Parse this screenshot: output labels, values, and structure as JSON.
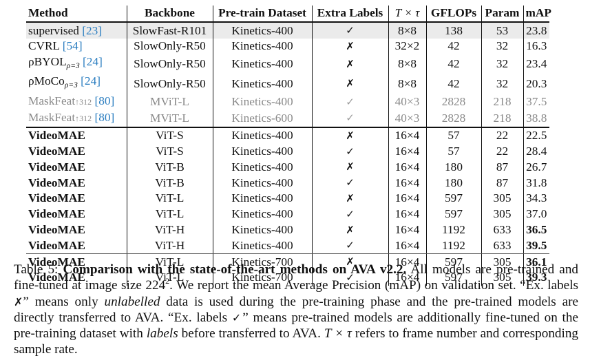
{
  "table": {
    "headers": {
      "method": "Method",
      "backbone": "Backbone",
      "dataset": "Pre-train Dataset",
      "extra_labels": "Extra Labels",
      "t_tau": "T × τ",
      "gflops": "GFLOPs",
      "param": "Param",
      "map": "mAP"
    },
    "rows": [
      {
        "method": "supervised",
        "method_sub": "",
        "cite": "[23]",
        "backbone": "SlowFast-R101",
        "dataset": "Kinetics-400",
        "extra": "✓",
        "t_tau": "8×8",
        "gflops": "138",
        "param": "53",
        "map": "23.8",
        "style": "shaded"
      },
      {
        "method": "CVRL",
        "method_sub": "",
        "cite": "[54]",
        "backbone": "SlowOnly-R50",
        "dataset": "Kinetics-400",
        "extra": "✗",
        "t_tau": "32×2",
        "gflops": "42",
        "param": "32",
        "map": "16.3",
        "style": "normal"
      },
      {
        "method": "ρBYOL",
        "method_sub": "ρ=3",
        "cite": "[24]",
        "backbone": "SlowOnly-R50",
        "dataset": "Kinetics-400",
        "extra": "✗",
        "t_tau": "8×8",
        "gflops": "42",
        "param": "32",
        "map": "23.4",
        "style": "normal"
      },
      {
        "method": "ρMoCo",
        "method_sub": "ρ=3",
        "cite": "[24]",
        "backbone": "SlowOnly-R50",
        "dataset": "Kinetics-400",
        "extra": "✗",
        "t_tau": "8×8",
        "gflops": "42",
        "param": "32",
        "map": "20.3",
        "style": "normal"
      },
      {
        "method": "MaskFeat",
        "method_sub": "↑312",
        "cite": "[80]",
        "backbone": "MViT-L",
        "dataset": "Kinetics-400",
        "extra": "✓",
        "t_tau": "40×3",
        "gflops": "2828",
        "param": "218",
        "map": "37.5",
        "style": "muted"
      },
      {
        "method": "MaskFeat",
        "method_sub": "↑312",
        "cite": "[80]",
        "backbone": "MViT-L",
        "dataset": "Kinetics-600",
        "extra": "✓",
        "t_tau": "40×3",
        "gflops": "2828",
        "param": "218",
        "map": "38.8",
        "style": "muted"
      },
      {
        "method": "VideoMAE",
        "backbone": "ViT-S",
        "dataset": "Kinetics-400",
        "extra": "✗",
        "t_tau": "16×4",
        "gflops": "57",
        "param": "22",
        "map": "22.5",
        "map_bold": false
      },
      {
        "method": "VideoMAE",
        "backbone": "ViT-S",
        "dataset": "Kinetics-400",
        "extra": "✓",
        "t_tau": "16×4",
        "gflops": "57",
        "param": "22",
        "map": "28.4",
        "map_bold": false
      },
      {
        "method": "VideoMAE",
        "backbone": "ViT-B",
        "dataset": "Kinetics-400",
        "extra": "✗",
        "t_tau": "16×4",
        "gflops": "180",
        "param": "87",
        "map": "26.7",
        "map_bold": false
      },
      {
        "method": "VideoMAE",
        "backbone": "ViT-B",
        "dataset": "Kinetics-400",
        "extra": "✓",
        "t_tau": "16×4",
        "gflops": "180",
        "param": "87",
        "map": "31.8",
        "map_bold": false
      },
      {
        "method": "VideoMAE",
        "backbone": "ViT-L",
        "dataset": "Kinetics-400",
        "extra": "✗",
        "t_tau": "16×4",
        "gflops": "597",
        "param": "305",
        "map": "34.3",
        "map_bold": false
      },
      {
        "method": "VideoMAE",
        "backbone": "ViT-L",
        "dataset": "Kinetics-400",
        "extra": "✓",
        "t_tau": "16×4",
        "gflops": "597",
        "param": "305",
        "map": "37.0",
        "map_bold": false
      },
      {
        "method": "VideoMAE",
        "backbone": "ViT-H",
        "dataset": "Kinetics-400",
        "extra": "✗",
        "t_tau": "16×4",
        "gflops": "1192",
        "param": "633",
        "map": "36.5",
        "map_bold": true
      },
      {
        "method": "VideoMAE",
        "backbone": "ViT-H",
        "dataset": "Kinetics-400",
        "extra": "✓",
        "t_tau": "16×4",
        "gflops": "1192",
        "param": "633",
        "map": "39.5",
        "map_bold": true
      },
      {
        "method": "VideoMAE",
        "backbone": "ViT-L",
        "dataset": "Kinetics-700",
        "extra": "✗",
        "t_tau": "16×4",
        "gflops": "597",
        "param": "305",
        "map": "36.1",
        "map_bold": true
      },
      {
        "method": "VideoMAE",
        "backbone": "ViT-L",
        "dataset": "Kinetics-700",
        "extra": "✓",
        "t_tau": "16×4",
        "gflops": "597",
        "param": "305",
        "map": "39.3",
        "map_bold": true
      }
    ]
  },
  "caption": {
    "label": "Table 5:",
    "title": "Comparison with the state-of-the-art methods on AVA v2.2.",
    "s1": "All models are pre-trained and fine-tuned at image size 224",
    "s1_sup": "2",
    "s2": ". We report the mean Average Precision (mAP) on validation set. “Ex. labels ",
    "mark_x": "✗",
    "s3": "” means only ",
    "em1": "unlabelled",
    "s4": " data is used during the pre-training phase and the pre-trained models are directly transferred to AVA. “Ex. labels ",
    "mark_check": "✓",
    "s5": "” means pre-trained models are additionally fine-tuned on the pre-training dataset with ",
    "em2": "labels",
    "s6": " before transferred to AVA. ",
    "math": "T × τ",
    "s7": " refers to frame number and corresponding sample rate."
  }
}
